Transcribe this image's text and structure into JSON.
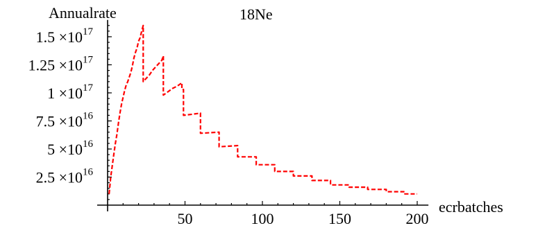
{
  "chart_data": {
    "type": "line",
    "title": "18Ne",
    "xlabel": "ecrbatches",
    "ylabel": "Annualrate",
    "xlim": [
      0,
      205
    ],
    "ylim": [
      0,
      1.65e+17
    ],
    "grid": false,
    "legend": "none",
    "x_ticks": [
      {
        "value": 50,
        "label": "50"
      },
      {
        "value": 100,
        "label": "100"
      },
      {
        "value": 150,
        "label": "150"
      },
      {
        "value": 200,
        "label": "200"
      }
    ],
    "y_ticks": [
      {
        "value": 2.5e+16,
        "mantissa": "2.5",
        "exponent": "16"
      },
      {
        "value": 5e+16,
        "mantissa": "5",
        "exponent": "16"
      },
      {
        "value": 7.5e+16,
        "mantissa": "7.5",
        "exponent": "16"
      },
      {
        "value": 1e+17,
        "mantissa": "1",
        "exponent": "17"
      },
      {
        "value": 1.25e+17,
        "mantissa": "1.25",
        "exponent": "17"
      },
      {
        "value": 1.5e+17,
        "mantissa": "1.5",
        "exponent": "17"
      }
    ],
    "series": [
      {
        "color": "#ff0000",
        "points": [
          [
            1,
            1e+16
          ],
          [
            2,
            2.5e+16
          ],
          [
            3,
            3.5e+16
          ],
          [
            4,
            4.5e+16
          ],
          [
            5,
            5.5e+16
          ],
          [
            6,
            6.3e+16
          ],
          [
            7,
            7.3e+16
          ],
          [
            8,
            8.2e+16
          ],
          [
            9,
            9e+16
          ],
          [
            10,
            9.6e+16
          ],
          [
            11,
            1.02e+17
          ],
          [
            12,
            1.07e+17
          ],
          [
            13,
            1.1e+17
          ],
          [
            14,
            1.14e+17
          ],
          [
            15,
            1.18e+17
          ],
          [
            16,
            1.24e+17
          ],
          [
            17,
            1.31e+17
          ],
          [
            18,
            1.36e+17
          ],
          [
            19,
            1.4e+17
          ],
          [
            20,
            1.46e+17
          ],
          [
            21,
            1.49e+17
          ],
          [
            22,
            1.55e+17
          ],
          [
            23,
            1.6e+17
          ],
          [
            23,
            1.1e+17
          ],
          [
            25,
            1.13e+17
          ],
          [
            27,
            1.16e+17
          ],
          [
            29,
            1.2e+17
          ],
          [
            31,
            1.23e+17
          ],
          [
            33,
            1.26e+17
          ],
          [
            35,
            1.29e+17
          ],
          [
            36,
            1.33e+17
          ],
          [
            36,
            9.8e+16
          ],
          [
            39,
            1.01e+17
          ],
          [
            42,
            1.04e+17
          ],
          [
            45,
            1.06e+17
          ],
          [
            48,
            1.09e+17
          ],
          [
            48,
            1.03e+17
          ],
          [
            49,
            1.03e+17
          ],
          [
            49,
            8e+16
          ],
          [
            55,
            8.1e+16
          ],
          [
            60,
            8.2e+16
          ],
          [
            60,
            6.4e+16
          ],
          [
            72,
            6.5e+16
          ],
          [
            72,
            5.2e+16
          ],
          [
            84,
            5.3e+16
          ],
          [
            84,
            4.3e+16
          ],
          [
            96,
            4.3e+16
          ],
          [
            96,
            3.6e+16
          ],
          [
            108,
            3.6e+16
          ],
          [
            108,
            3e+16
          ],
          [
            120,
            3e+16
          ],
          [
            120,
            2.6e+16
          ],
          [
            132,
            2.6e+16
          ],
          [
            132,
            2.2e+16
          ],
          [
            144,
            2.2e+16
          ],
          [
            144,
            1.8e+16
          ],
          [
            156,
            1.8e+16
          ],
          [
            156,
            1.6e+16
          ],
          [
            168,
            1.6e+16
          ],
          [
            168,
            1.4e+16
          ],
          [
            180,
            1.4e+16
          ],
          [
            180,
            1.2e+16
          ],
          [
            192,
            1.2e+16
          ],
          [
            192,
            1e+16
          ],
          [
            200,
            1e+16
          ]
        ]
      }
    ]
  }
}
